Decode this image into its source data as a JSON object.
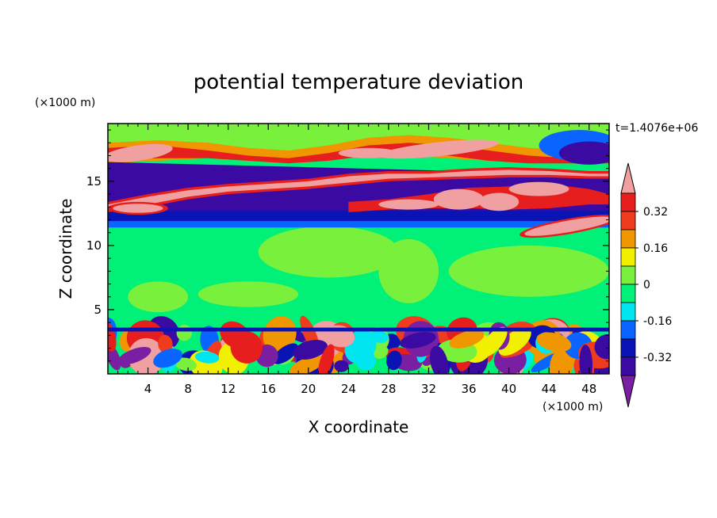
{
  "chart_data": {
    "type": "heatmap",
    "title": "potential temperature deviation",
    "xlabel": "X coordinate",
    "ylabel": "Z coordinate",
    "x_unit": "(×1000 m)",
    "y_unit": "(×1000 m)",
    "time_label": "t=1.4076e+06",
    "xlim": [
      0,
      50
    ],
    "ylim": [
      0,
      19.5
    ],
    "x_ticks": [
      4,
      8,
      12,
      16,
      20,
      24,
      28,
      32,
      36,
      40,
      44,
      48
    ],
    "y_ticks": [
      5,
      10,
      15
    ],
    "colorbar": {
      "levels": [
        -0.4,
        -0.32,
        -0.24,
        -0.16,
        -0.08,
        0,
        0.08,
        0.16,
        0.24,
        0.32,
        0.4
      ],
      "labels": [
        "0.32",
        "0.16",
        "0",
        "-0.16",
        "-0.32"
      ],
      "label_values": [
        0.32,
        0.16,
        0,
        -0.16,
        -0.32
      ],
      "colors": [
        "#7b1fa2",
        "#3b0aa3",
        "#0a14b4",
        "#0a64ff",
        "#00e6f0",
        "#00f078",
        "#78f03c",
        "#f0f000",
        "#f09600",
        "#f03c1e",
        "#e61e1e",
        "#f0a0a0"
      ],
      "extend": "both"
    },
    "layers": [
      {
        "z": [
          0.3,
          3.5
        ],
        "field": "strong oscillating anomalies between -0.4 and +0.4"
      },
      {
        "z": [
          3.5,
          11.5
        ],
        "field": "near zero, 0 to +0.08"
      },
      {
        "z": [
          11.5,
          12.8
        ],
        "field": "negative, -0.32 to -0.16"
      },
      {
        "z": [
          12.5,
          16.5
        ],
        "field": "tilted warm band above +0.4 with strong negative below -0.32"
      },
      {
        "z": [
          16.5,
          19.5
        ],
        "field": "warm anomaly 0.16 to 0.4 above 17 km"
      }
    ]
  }
}
